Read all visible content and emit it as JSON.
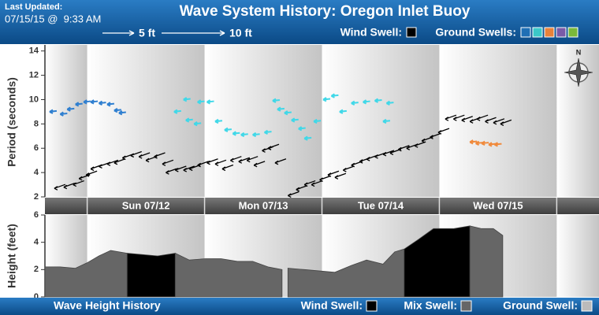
{
  "header": {
    "updated_label": "Last Updated:",
    "updated": "07/15/15 @  9:33 AM"
  },
  "compass": "N",
  "chart_data": [
    {
      "type": "scatter",
      "title": "Wave System History: Oregon Inlet Buoy",
      "ylabel": "Period (seconds)",
      "categories": [
        "Sun 07/12",
        "Mon 07/13",
        "Tue 07/14",
        "Wed 07/15"
      ],
      "xlim": [
        -0.36,
        4.36
      ],
      "ylim": [
        2,
        14.5
      ],
      "yticks": [
        2,
        4,
        6,
        8,
        10,
        12,
        14
      ],
      "size_legend": [
        {
          "value": 5,
          "label": "5 ft"
        },
        {
          "value": 10,
          "label": "10 ft"
        }
      ],
      "legend": [
        {
          "label": "Wind Swell:",
          "colors": [
            "#000000"
          ]
        },
        {
          "label": "Ground Swells:",
          "colors": [
            "#1f6fb5",
            "#3cc8c8",
            "#e8823a",
            "#7a5aa8",
            "#7ab83a"
          ]
        }
      ],
      "series": [
        {
          "color": "#000000",
          "x": [
            -0.28,
            -0.2,
            -0.12,
            -0.07,
            -0.01,
            0.03,
            0.1,
            0.17,
            0.23,
            0.3,
            0.37,
            0.44,
            0.5,
            0.57,
            0.64,
            0.67,
            0.75,
            0.82,
            0.87,
            0.94,
            1.02,
            1.09,
            1.15,
            1.22,
            1.29,
            1.36,
            1.42,
            1.49,
            1.54,
            1.6,
            1.71,
            1.78,
            1.85,
            1.91,
            1.98,
            2.05,
            2.11,
            2.18,
            2.25,
            2.32,
            2.38,
            2.45,
            2.52,
            2.58,
            2.65,
            2.72,
            2.79,
            2.85,
            2.92,
            2.99,
            3.05,
            3.12,
            3.19,
            3.26,
            3.32,
            3.39,
            3.46,
            3.52
          ],
          "values": [
            2.7,
            2.8,
            3.0,
            3.5,
            3.8,
            4.3,
            4.5,
            4.7,
            4.8,
            5.2,
            5.4,
            5.3,
            5.0,
            5.3,
            4.7,
            4.0,
            4.2,
            4.2,
            4.3,
            4.6,
            4.8,
            4.7,
            4.3,
            5.0,
            4.9,
            5.0,
            4.6,
            5.8,
            6.0,
            4.8,
            2.1,
            2.6,
            3.0,
            3.0,
            3.4,
            3.8,
            3.6,
            4.2,
            4.6,
            4.9,
            5.1,
            5.3,
            5.5,
            5.6,
            5.9,
            6.0,
            6.2,
            6.6,
            6.9,
            7.3,
            8.4,
            8.4,
            8.3,
            8.2,
            8.4,
            8.2,
            8.1,
            8.0
          ]
        },
        {
          "color": "#2f7fd0",
          "x": [
            -0.32,
            -0.23,
            -0.17,
            -0.1,
            -0.03,
            0.03,
            0.1,
            0.17,
            0.23,
            0.27
          ],
          "values": [
            9.0,
            8.8,
            9.2,
            9.6,
            9.8,
            9.8,
            9.7,
            9.6,
            9.1,
            8.9
          ]
        },
        {
          "color": "#40d8e8",
          "x": [
            0.74,
            0.82,
            0.84,
            0.91,
            0.94,
            1.02,
            1.09,
            1.17,
            1.24,
            1.31,
            1.41,
            1.51,
            1.58,
            1.62,
            1.68,
            1.74,
            1.8,
            1.85,
            1.93,
            2.01,
            2.08,
            2.15,
            2.25,
            2.35,
            2.45,
            2.52,
            2.55
          ],
          "values": [
            9.0,
            10.0,
            8.3,
            8.0,
            9.8,
            9.8,
            8.2,
            7.5,
            7.2,
            7.1,
            7.1,
            7.3,
            9.9,
            9.2,
            8.9,
            8.3,
            7.6,
            6.8,
            8.2,
            10.0,
            10.3,
            9.0,
            9.7,
            9.8,
            9.9,
            8.2,
            9.7
          ]
        },
        {
          "color": "#f08a3c",
          "x": [
            3.26,
            3.31,
            3.36,
            3.42,
            3.47
          ],
          "values": [
            6.5,
            6.4,
            6.4,
            6.3,
            6.3
          ]
        }
      ]
    },
    {
      "type": "area",
      "title": "Wave Height History",
      "ylabel": "Height (feet)",
      "xlim": [
        -0.36,
        4.36
      ],
      "ylim": [
        0,
        6
      ],
      "yticks": [
        0,
        2,
        4,
        6
      ],
      "legend": [
        {
          "label": "Wind Swell:",
          "color": "#000000"
        },
        {
          "label": "Mix Swell:",
          "color": "#666666"
        },
        {
          "label": "Ground Swell:",
          "color": "#bbbbbb"
        }
      ],
      "x": [
        -0.36,
        -0.23,
        -0.1,
        0,
        0.1,
        0.2,
        0.34,
        0.47,
        0.6,
        0.75,
        0.87,
        1.01,
        1.14,
        1.28,
        1.41,
        1.54,
        1.66,
        1.68,
        1.71,
        1.85,
        1.98,
        2.11,
        2.25,
        2.38,
        2.52,
        2.62,
        2.7,
        2.82,
        2.95,
        3.12,
        3.26,
        3.36,
        3.46,
        3.54
      ],
      "series": [
        {
          "color": "#000000",
          "values": [
            null,
            null,
            null,
            null,
            null,
            null,
            3.2,
            3.1,
            3.0,
            3.2,
            null,
            null,
            null,
            null,
            null,
            null,
            null,
            null,
            null,
            null,
            null,
            null,
            null,
            null,
            null,
            null,
            3.5,
            4.2,
            5.0,
            5.0,
            5.2,
            null,
            null,
            null
          ]
        },
        {
          "color": "#666666",
          "values": [
            2.2,
            2.2,
            2.1,
            2.5,
            3.0,
            3.4,
            3.2,
            null,
            null,
            3.2,
            2.7,
            2.8,
            2.8,
            2.6,
            2.6,
            2.2,
            2.0,
            null,
            2.1,
            2.0,
            1.9,
            1.8,
            2.3,
            2.7,
            2.4,
            3.3,
            3.5,
            null,
            null,
            null,
            5.2,
            5.0,
            5.0,
            4.5
          ]
        }
      ]
    }
  ]
}
